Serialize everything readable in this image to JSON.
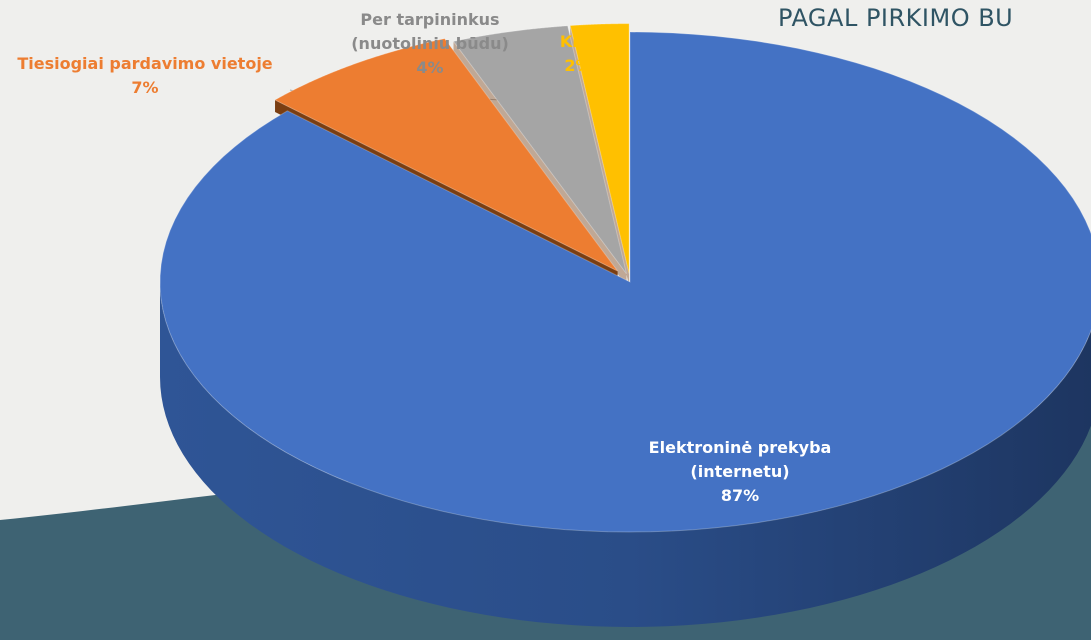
{
  "chart_data": {
    "type": "pie",
    "title": "PAGAL PIRKIMO BU",
    "categories": [
      "Elektroninė prekyba (internetu)",
      "Tiesiogiai pardavimo vietoje",
      "Per tarpininkus (nuotoliniu būdu)",
      "Kita"
    ],
    "values": [
      87,
      7,
      4,
      2
    ],
    "value_labels": [
      "87%",
      "7%",
      "4%",
      "2%"
    ],
    "colors": [
      "#4472c4",
      "#ed7d31",
      "#a5a5a5",
      "#ffc000"
    ]
  }
}
